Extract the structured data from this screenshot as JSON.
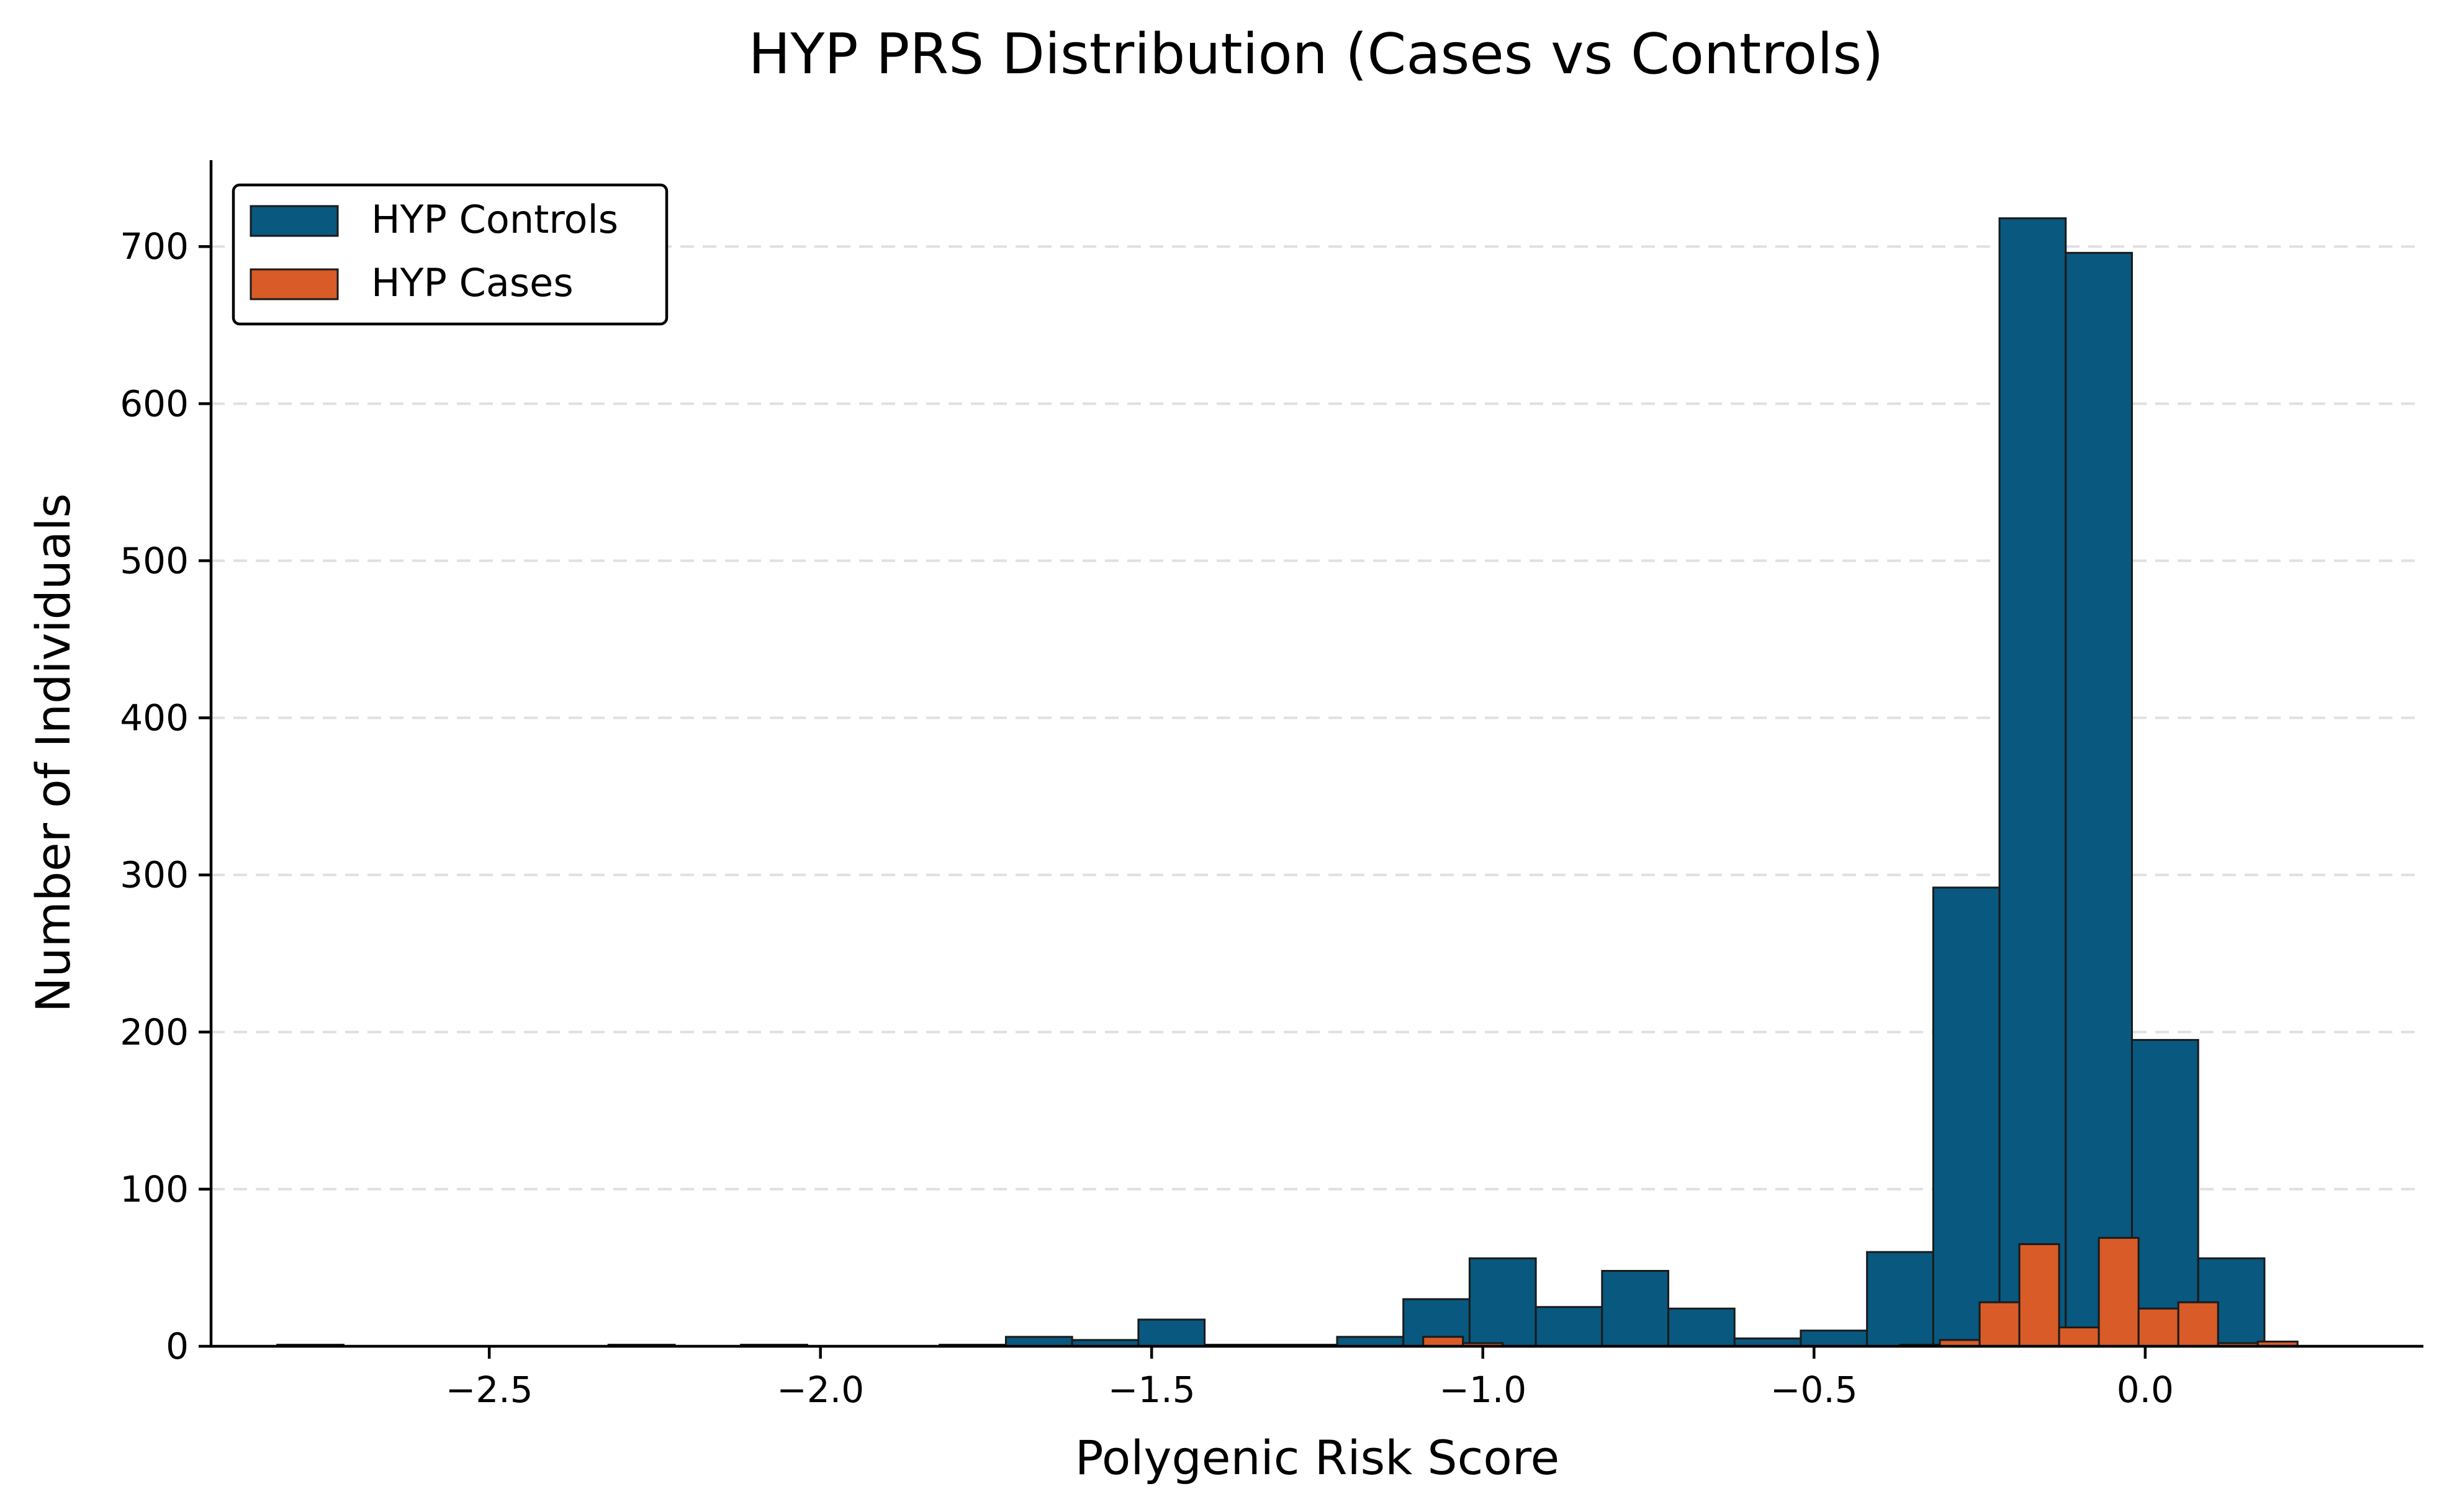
{
  "chart_data": {
    "type": "bar",
    "title": "HYP PRS Distribution (Cases vs Controls)",
    "xlabel": "Polygenic Risk Score",
    "ylabel": "Number of Individuals",
    "xlim": [
      -2.92,
      0.42
    ],
    "ylim": [
      0,
      755
    ],
    "xticks": [
      -2.5,
      -2.0,
      -1.5,
      -1.0,
      -0.5,
      0.0
    ],
    "xtick_labels": [
      "−2.5",
      "−2.0",
      "−1.5",
      "−1.0",
      "−0.5",
      "0.0"
    ],
    "yticks": [
      0,
      100,
      200,
      300,
      400,
      500,
      600,
      700
    ],
    "ytick_labels": [
      "0",
      "100",
      "200",
      "300",
      "400",
      "500",
      "600",
      "700"
    ],
    "grid": "y-dashed",
    "legend_position": "top-left",
    "series": [
      {
        "name": "HYP Controls",
        "color": "#08587f",
        "bins": [
          {
            "x0": -2.82,
            "x1": -2.72,
            "value": 1
          },
          {
            "x0": -2.32,
            "x1": -2.22,
            "value": 1
          },
          {
            "x0": -2.12,
            "x1": -2.02,
            "value": 1
          },
          {
            "x0": -1.82,
            "x1": -1.72,
            "value": 1
          },
          {
            "x0": -1.72,
            "x1": -1.62,
            "value": 6
          },
          {
            "x0": -1.62,
            "x1": -1.52,
            "value": 4
          },
          {
            "x0": -1.52,
            "x1": -1.42,
            "value": 17
          },
          {
            "x0": -1.42,
            "x1": -1.32,
            "value": 1
          },
          {
            "x0": -1.32,
            "x1": -1.22,
            "value": 1
          },
          {
            "x0": -1.22,
            "x1": -1.12,
            "value": 6
          },
          {
            "x0": -1.12,
            "x1": -1.02,
            "value": 30
          },
          {
            "x0": -1.02,
            "x1": -0.92,
            "value": 56
          },
          {
            "x0": -0.92,
            "x1": -0.82,
            "value": 25
          },
          {
            "x0": -0.82,
            "x1": -0.72,
            "value": 48
          },
          {
            "x0": -0.72,
            "x1": -0.62,
            "value": 24
          },
          {
            "x0": -0.62,
            "x1": -0.52,
            "value": 5
          },
          {
            "x0": -0.52,
            "x1": -0.42,
            "value": 10
          },
          {
            "x0": -0.42,
            "x1": -0.32,
            "value": 60
          },
          {
            "x0": -0.32,
            "x1": -0.22,
            "value": 292
          },
          {
            "x0": -0.22,
            "x1": -0.12,
            "value": 718
          },
          {
            "x0": -0.12,
            "x1": -0.02,
            "value": 696
          },
          {
            "x0": -0.02,
            "x1": 0.08,
            "value": 195
          },
          {
            "x0": 0.08,
            "x1": 0.18,
            "value": 56
          }
        ]
      },
      {
        "name": "HYP Cases",
        "color": "#d95b27",
        "bins": [
          {
            "x0": -1.09,
            "x1": -1.03,
            "value": 6
          },
          {
            "x0": -1.03,
            "x1": -0.97,
            "value": 2
          },
          {
            "x0": -0.37,
            "x1": -0.31,
            "value": 1
          },
          {
            "x0": -0.31,
            "x1": -0.25,
            "value": 4
          },
          {
            "x0": -0.25,
            "x1": -0.19,
            "value": 28
          },
          {
            "x0": -0.19,
            "x1": -0.13,
            "value": 65
          },
          {
            "x0": -0.13,
            "x1": -0.07,
            "value": 12
          },
          {
            "x0": -0.07,
            "x1": -0.01,
            "value": 69
          },
          {
            "x0": -0.01,
            "x1": 0.05,
            "value": 24
          },
          {
            "x0": 0.05,
            "x1": 0.11,
            "value": 28
          },
          {
            "x0": 0.11,
            "x1": 0.17,
            "value": 2
          },
          {
            "x0": 0.17,
            "x1": 0.23,
            "value": 3
          }
        ]
      }
    ]
  }
}
